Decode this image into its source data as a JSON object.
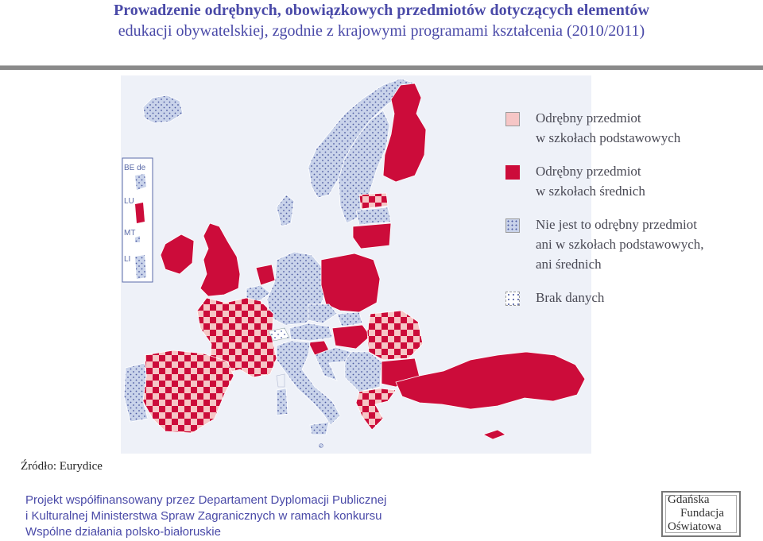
{
  "title": {
    "line1": "Prowadzenie odrębnych, obowiązkowych przedmiotów dotyczących elementów",
    "line2": "edukacji obywatelskiej, zgodnie z krajowymi programami kształcenia (2010/2011)"
  },
  "inset_labels": [
    "BE de",
    "LU",
    "MT",
    "LI"
  ],
  "legend": [
    {
      "label": "Odrębny przedmiot\nw szkołach podstawowych",
      "pattern": "pink-solid",
      "color": "#f6c6c6"
    },
    {
      "label": "Odrębny przedmiot\nw szkołach średnich",
      "pattern": "red-solid",
      "color": "#cc0c3a"
    },
    {
      "label": "Nie jest to odrębny przedmiot\nani w szkołach podstawowych,\nani średnich",
      "pattern": "blue-dots",
      "color": "#c9d3ea"
    },
    {
      "label": "Brak danych",
      "pattern": "white-dots",
      "color": "#ffffff"
    }
  ],
  "colors": {
    "red": "#cc0c3a",
    "pink": "#f6c6c6",
    "blue": "#c9d3ea",
    "dot": "#4a58a0",
    "title": "#4a4aa8"
  },
  "source": "Źródło: Eurydice",
  "project": {
    "line1": "Projekt współfinansowany przez Departament Dyplomacji Publicznej",
    "line2": "i Kulturalnej Ministerstwa Spraw Zagranicznych w ramach konkursu",
    "line3": "Wspólne działania polsko-białoruskie"
  },
  "logo": {
    "l1": "Gdańska",
    "l2": "Fundacja",
    "l3": "Oświatowa"
  }
}
